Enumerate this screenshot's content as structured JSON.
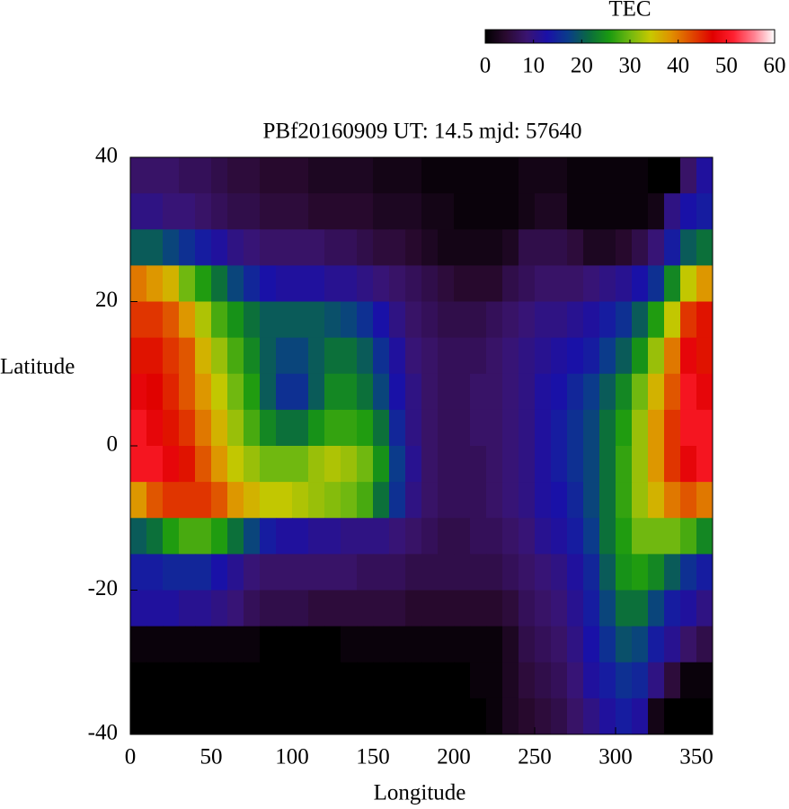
{
  "chart_data": {
    "type": "heatmap",
    "title": "PBf20160909  UT: 14.5  mjd: 57640",
    "xlabel": "Longitude",
    "ylabel": "Latitude",
    "x": [
      5,
      15,
      25,
      35,
      45,
      55,
      65,
      75,
      85,
      95,
      105,
      115,
      125,
      135,
      145,
      155,
      165,
      175,
      185,
      195,
      205,
      215,
      225,
      235,
      245,
      255,
      265,
      275,
      285,
      295,
      305,
      315,
      325,
      335,
      345,
      355
    ],
    "y": [
      37.5,
      32.5,
      27.5,
      22.5,
      17.5,
      12.5,
      7.5,
      2.5,
      -2.5,
      -7.5,
      -12.5,
      -17.5,
      -22.5,
      -27.5,
      -32.5,
      -37.5
    ],
    "z": [
      [
        8,
        8,
        8,
        7,
        7,
        6,
        5,
        5,
        4,
        4,
        4,
        3,
        3,
        3,
        3,
        2,
        2,
        2,
        1,
        1,
        1,
        1,
        1,
        1,
        2,
        2,
        2,
        1,
        1,
        1,
        1,
        1,
        0,
        0,
        8,
        12
      ],
      [
        10,
        10,
        9,
        9,
        8,
        7,
        6,
        6,
        5,
        5,
        5,
        4,
        4,
        4,
        4,
        3,
        3,
        3,
        2,
        2,
        1,
        1,
        1,
        1,
        2,
        3,
        3,
        1,
        1,
        1,
        1,
        1,
        2,
        10,
        13,
        14
      ],
      [
        20,
        20,
        18,
        16,
        14,
        12,
        10,
        9,
        8,
        8,
        8,
        8,
        7,
        7,
        6,
        5,
        5,
        4,
        3,
        2,
        2,
        2,
        2,
        3,
        6,
        6,
        6,
        5,
        3,
        3,
        4,
        6,
        9,
        14,
        20,
        22
      ],
      [
        40,
        38,
        36,
        30,
        26,
        22,
        18,
        15,
        13,
        12,
        12,
        12,
        11,
        11,
        10,
        9,
        8,
        7,
        6,
        5,
        4,
        4,
        4,
        6,
        7,
        8,
        8,
        8,
        9,
        10,
        11,
        13,
        16,
        24,
        34,
        38
      ],
      [
        44,
        44,
        42,
        38,
        33,
        28,
        25,
        22,
        20,
        20,
        20,
        20,
        19,
        18,
        16,
        13,
        10,
        8,
        7,
        6,
        6,
        6,
        7,
        8,
        9,
        10,
        10,
        11,
        12,
        14,
        16,
        20,
        26,
        34,
        44,
        46
      ],
      [
        46,
        46,
        44,
        42,
        36,
        32,
        28,
        24,
        20,
        18,
        18,
        20,
        22,
        22,
        20,
        16,
        12,
        9,
        8,
        7,
        7,
        7,
        8,
        9,
        10,
        11,
        12,
        13,
        14,
        17,
        20,
        25,
        32,
        40,
        48,
        46
      ],
      [
        48,
        47,
        45,
        42,
        38,
        34,
        30,
        26,
        20,
        16,
        16,
        20,
        24,
        24,
        22,
        18,
        13,
        10,
        8,
        7,
        7,
        8,
        8,
        9,
        10,
        12,
        13,
        15,
        17,
        20,
        24,
        30,
        36,
        42,
        50,
        48
      ],
      [
        50,
        48,
        46,
        44,
        40,
        36,
        32,
        28,
        24,
        22,
        22,
        25,
        27,
        27,
        26,
        22,
        15,
        10,
        8,
        7,
        7,
        8,
        8,
        9,
        10,
        12,
        14,
        16,
        18,
        22,
        26,
        32,
        38,
        44,
        50,
        50
      ],
      [
        50,
        50,
        48,
        46,
        42,
        38,
        34,
        32,
        30,
        30,
        30,
        32,
        33,
        32,
        30,
        25,
        17,
        11,
        8,
        7,
        7,
        7,
        8,
        9,
        10,
        12,
        14,
        16,
        18,
        22,
        27,
        32,
        38,
        44,
        48,
        50
      ],
      [
        38,
        42,
        44,
        44,
        44,
        42,
        38,
        36,
        34,
        34,
        33,
        32,
        31,
        30,
        28,
        22,
        16,
        10,
        8,
        7,
        7,
        7,
        8,
        9,
        10,
        12,
        13,
        15,
        18,
        22,
        27,
        32,
        36,
        40,
        42,
        40
      ],
      [
        20,
        22,
        26,
        28,
        28,
        26,
        22,
        18,
        14,
        12,
        12,
        11,
        11,
        10,
        10,
        10,
        9,
        8,
        7,
        6,
        6,
        7,
        7,
        8,
        9,
        11,
        12,
        14,
        17,
        22,
        26,
        30,
        30,
        30,
        28,
        24
      ],
      [
        14,
        14,
        15,
        15,
        15,
        13,
        11,
        9,
        8,
        8,
        8,
        8,
        8,
        8,
        7,
        7,
        7,
        6,
        6,
        6,
        6,
        6,
        6,
        7,
        8,
        9,
        10,
        12,
        15,
        20,
        25,
        26,
        24,
        20,
        16,
        14
      ],
      [
        12,
        12,
        12,
        11,
        11,
        10,
        9,
        7,
        6,
        6,
        6,
        5,
        5,
        5,
        5,
        5,
        5,
        4,
        4,
        4,
        4,
        4,
        4,
        5,
        7,
        8,
        9,
        11,
        14,
        18,
        22,
        22,
        18,
        14,
        12,
        10
      ],
      [
        1,
        1,
        1,
        1,
        1,
        1,
        1,
        1,
        0,
        0,
        0,
        0,
        0,
        1,
        1,
        1,
        1,
        1,
        1,
        1,
        1,
        1,
        1,
        3,
        6,
        7,
        8,
        10,
        13,
        16,
        19,
        18,
        14,
        11,
        8,
        6
      ],
      [
        0,
        0,
        0,
        0,
        0,
        0,
        0,
        0,
        0,
        0,
        0,
        0,
        0,
        0,
        0,
        0,
        0,
        0,
        0,
        0,
        0,
        1,
        1,
        3,
        5,
        6,
        7,
        9,
        12,
        14,
        16,
        15,
        10,
        5,
        1,
        1
      ],
      [
        0,
        0,
        0,
        0,
        0,
        0,
        0,
        0,
        0,
        0,
        0,
        0,
        0,
        0,
        0,
        0,
        0,
        0,
        0,
        0,
        0,
        0,
        1,
        3,
        4,
        5,
        6,
        8,
        10,
        12,
        14,
        12,
        2,
        0,
        0,
        0
      ]
    ],
    "xlim": [
      0,
      360
    ],
    "xticks": [
      0,
      50,
      100,
      150,
      200,
      250,
      300,
      350
    ],
    "ylim": [
      -40,
      40
    ],
    "yticks": [
      -40,
      -20,
      0,
      20,
      40
    ],
    "colorbar": {
      "label": "TEC",
      "range": [
        0,
        60
      ],
      "ticks": [
        0,
        10,
        20,
        30,
        40,
        50,
        60
      ],
      "colors": [
        "#000000",
        "#2a0a30",
        "#3a1470",
        "#1a10a8",
        "#0a3c8a",
        "#0a6a40",
        "#1a9a10",
        "#70b810",
        "#c8c800",
        "#e09000",
        "#e04800",
        "#e00000",
        "#ff2030",
        "#ff8090",
        "#ffffff"
      ]
    }
  }
}
